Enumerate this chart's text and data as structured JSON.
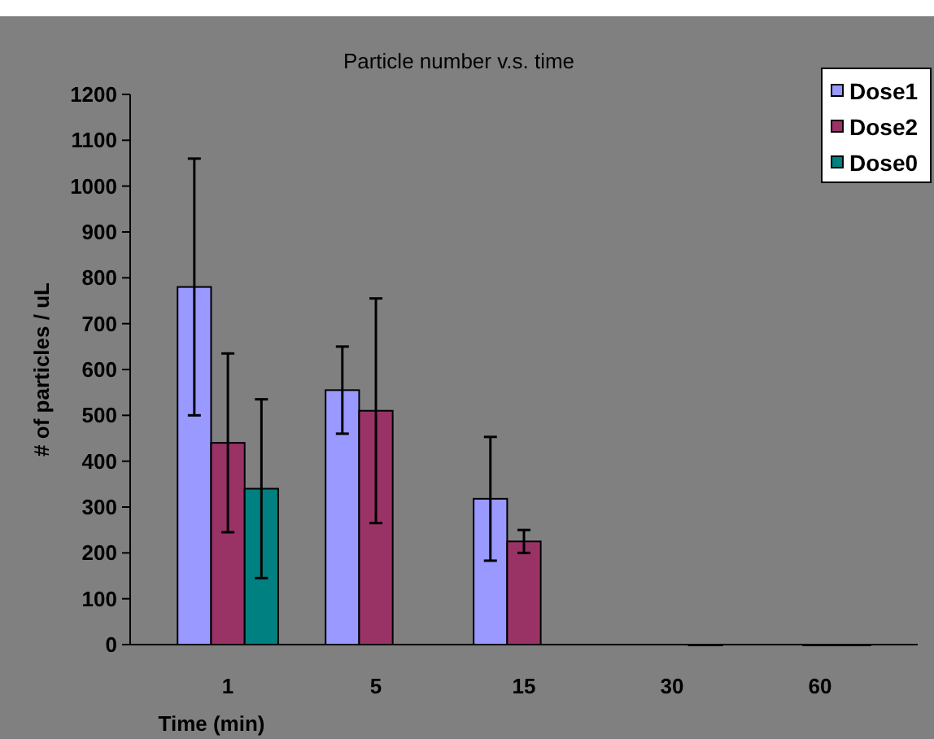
{
  "chart_data": {
    "type": "bar",
    "title": "Particle number v.s. time",
    "xlabel": "Time (min)",
    "ylabel": "# of particles / uL",
    "categories": [
      "1",
      "5",
      "15",
      "30",
      "60"
    ],
    "series": [
      {
        "name": "Dose1",
        "color": "#9999ff",
        "values": [
          780,
          555,
          318,
          null,
          null
        ],
        "errors": [
          280,
          95,
          135,
          null,
          null
        ]
      },
      {
        "name": "Dose2",
        "color": "#993366",
        "values": [
          440,
          510,
          225,
          null,
          0
        ],
        "errors": [
          195,
          245,
          25,
          null,
          null
        ]
      },
      {
        "name": "Dose0",
        "color": "#008080",
        "values": [
          340,
          null,
          null,
          0,
          0
        ],
        "errors": [
          195,
          null,
          null,
          null,
          null
        ]
      }
    ],
    "ylim": [
      0,
      1200
    ],
    "yticks": [
      0,
      100,
      200,
      300,
      400,
      500,
      600,
      700,
      800,
      900,
      1000,
      1100,
      1200
    ],
    "grid": false,
    "legend": "top right"
  }
}
